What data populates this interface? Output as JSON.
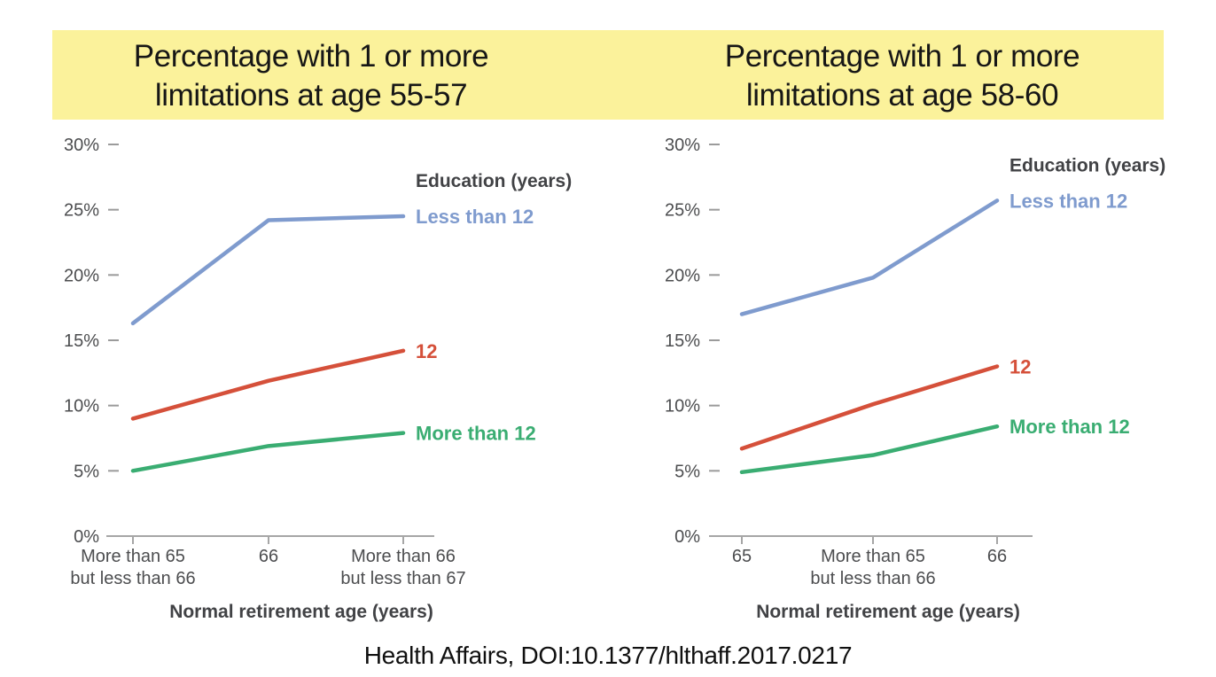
{
  "banner": {
    "background": "#fbf29b",
    "left_title": "Percentage with 1 or more\nlimitations at age 55-57",
    "right_title": "Percentage with 1 or more\nlimitations at age 58-60"
  },
  "caption": "Health Affairs, DOI:10.1377/hlthaff.2017.0217",
  "colors": {
    "banner_yellow": "#fbf29b",
    "series_blue": "#7f9bce",
    "series_red": "#d5503a",
    "series_green": "#3aad72",
    "axis_gray": "#a6a6a6",
    "tick_gray": "#9b9b9b",
    "label_gray": "#4c4d4f",
    "dark_gray": "#414245"
  },
  "chart_data": [
    {
      "type": "line",
      "title": "Percentage with 1 or more limitations at age 55-57",
      "legend_title": "Education (years)",
      "xlabel": "Normal retirement age  (years)",
      "ylabel": "",
      "ylim": [
        0,
        30
      ],
      "ytick_step": 5,
      "ytick_format": "percent",
      "grid": false,
      "legend_position": "labels-at-line-ends",
      "categories": [
        "More than 65\nbut less than 66",
        "66",
        "More than 66\nbut less than 67"
      ],
      "series": [
        {
          "name": "Less than 12",
          "color": "#7f9bce",
          "values": [
            16.3,
            24.2,
            24.5
          ]
        },
        {
          "name": "12",
          "color": "#d5503a",
          "values": [
            9.0,
            11.9,
            14.2
          ]
        },
        {
          "name": "More than 12",
          "color": "#3aad72",
          "values": [
            5.0,
            6.9,
            7.9
          ]
        }
      ]
    },
    {
      "type": "line",
      "title": "Percentage with 1 or more limitations at age 58-60",
      "legend_title": "Education (years)",
      "xlabel": "Normal retirement age  (years)",
      "ylabel": "",
      "ylim": [
        0,
        30
      ],
      "ytick_step": 5,
      "ytick_format": "percent",
      "grid": false,
      "legend_position": "labels-at-line-ends",
      "categories": [
        "65",
        "More than 65\nbut less than 66",
        "66"
      ],
      "series": [
        {
          "name": "Less than 12",
          "color": "#7f9bce",
          "values": [
            17.0,
            19.8,
            25.7
          ]
        },
        {
          "name": "12",
          "color": "#d5503a",
          "values": [
            6.7,
            10.1,
            13.0
          ]
        },
        {
          "name": "More than 12",
          "color": "#3aad72",
          "values": [
            4.9,
            6.2,
            8.4
          ]
        }
      ]
    }
  ]
}
